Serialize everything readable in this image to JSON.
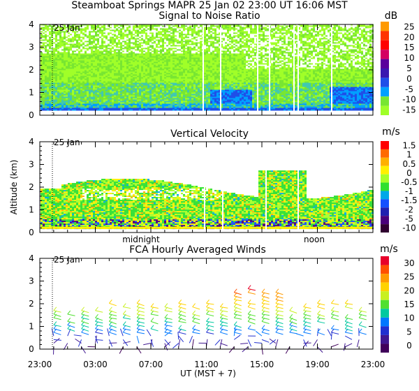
{
  "header": {
    "station": "Steamboat Springs",
    "instrument": "MAPR",
    "date": "25 Jan 02",
    "time_ut": "23:00 UT",
    "time_local": "16:06",
    "tz": "MST"
  },
  "panels": {
    "snr": {
      "title": "Signal to Noise Ratio",
      "unit": "dB",
      "date_marker": "25 Jan",
      "colorbar_labels": [
        "25",
        "20",
        "15",
        "10",
        "5",
        "0",
        "-5",
        "-10",
        "-15"
      ],
      "colors": [
        "#ff9900",
        "#ff3300",
        "#ff0000",
        "#d40062",
        "#5a009c",
        "#3a18b0",
        "#1f4fe8",
        "#00a0ff",
        "#78e632",
        "#a0ff28"
      ]
    },
    "vv": {
      "title": "Vertical Velocity",
      "unit": "m/s",
      "date_marker": "25 Jan",
      "ylabel": "Altitude (km)",
      "colorbar_labels": [
        "1.5",
        "1",
        "0.5",
        "0",
        "-0.5",
        "-1",
        "-1.5",
        "-2",
        "-5",
        "-10"
      ],
      "colors": [
        "#ff0000",
        "#ff6a00",
        "#ffb000",
        "#fff000",
        "#a8ff28",
        "#30e030",
        "#00a8e8",
        "#1450ff",
        "#2020b0",
        "#4a007a",
        "#300030"
      ],
      "time_labels": [
        "midnight",
        "noon"
      ]
    },
    "wind": {
      "title": "FCA Hourly Averaged Winds",
      "unit": "m/s",
      "date_marker": "25 Jan",
      "colorbar_labels": [
        "30",
        "25",
        "20",
        "15",
        "10",
        "5",
        "0"
      ],
      "colors": [
        "#e8002a",
        "#ff5000",
        "#ff9a00",
        "#ffd200",
        "#c8f020",
        "#50e030",
        "#00c8a0",
        "#0078ff",
        "#2030d0",
        "#401890",
        "#40005a"
      ]
    }
  },
  "xaxis": {
    "label": "UT  (MST + 7)",
    "tick_labels": [
      "23:00",
      "03:00",
      "07:00",
      "11:00",
      "15:00",
      "19:00",
      "23:00"
    ]
  },
  "chart_data": [
    {
      "type": "heatmap",
      "title": "Signal to Noise Ratio",
      "colorbar_unit": "dB",
      "colorbar_range": [
        -15,
        27
      ],
      "x": "UT time, 23:00 (24 Jan) to 23:00 (25 Jan)",
      "ylim": [
        0,
        4
      ],
      "yticks": [
        0,
        1,
        2,
        3,
        4
      ],
      "layers": [
        {
          "altitude_km": [
            0.2,
            0.3
          ],
          "snr_db": 0
        },
        {
          "altitude_km": [
            0.3,
            1.5
          ],
          "snr_db": -10
        },
        {
          "altitude_km": [
            1.5,
            4.0
          ],
          "snr_db": -15
        }
      ]
    },
    {
      "type": "heatmap",
      "title": "Vertical Velocity",
      "ylabel": "Altitude (km)",
      "colorbar_unit": "m/s",
      "colorbar_ticks": [
        1.5,
        1,
        0.5,
        0,
        -0.5,
        -1,
        -1.5,
        -2,
        -5,
        -10
      ],
      "ylim": [
        0,
        4
      ],
      "yticks": [
        0,
        1,
        2,
        3,
        4
      ],
      "echo_top_km": [
        2.0,
        2.5
      ],
      "dominant_velocity_ms": [
        0,
        -0.5
      ]
    },
    {
      "type": "scatter",
      "title": "FCA Hourly Averaged Winds",
      "colorbar_unit": "m/s",
      "colorbar_range": [
        0,
        30
      ],
      "ylim": [
        0,
        4
      ],
      "yticks": [
        0,
        1,
        2,
        3,
        4
      ],
      "xlabel": "UT  (MST + 7)",
      "xtick_labels": [
        "23:00",
        "03:00",
        "07:00",
        "11:00",
        "15:00",
        "19:00",
        "23:00"
      ],
      "wind_speed_by_altitude_ms": [
        {
          "altitude_km": 0.3,
          "speed": 3
        },
        {
          "altitude_km": 1.0,
          "speed": 10
        },
        {
          "altitude_km": 1.5,
          "speed": 17
        },
        {
          "altitude_km": 2.5,
          "speed": 26
        }
      ]
    }
  ]
}
